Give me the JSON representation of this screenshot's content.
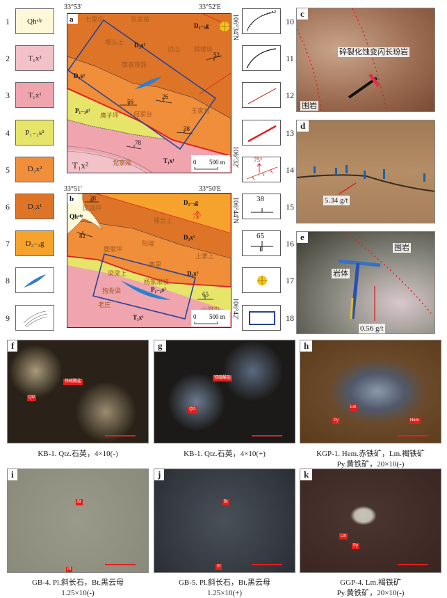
{
  "legend_left": [
    {
      "num": "1",
      "label": "Qhᵃˡᵖ",
      "color": "#fcf8d8"
    },
    {
      "num": "2",
      "label": "T₁x²",
      "color": "#f2c2c8"
    },
    {
      "num": "3",
      "label": "T₁x¹",
      "color": "#f0a4ae"
    },
    {
      "num": "4",
      "label": "P₁₋₂s²",
      "color": "#e6e56a"
    },
    {
      "num": "5",
      "label": "D₃x²",
      "color": "#f08e3a"
    },
    {
      "num": "6",
      "label": "D₃x¹",
      "color": "#dd7428"
    },
    {
      "num": "7",
      "label": "D₂₋₃g",
      "color": "#f5a32c"
    },
    {
      "num": "8",
      "icon": "ore-body-lens-icon",
      "color": "#2f7fd0"
    },
    {
      "num": "9",
      "icon": "road-icon"
    }
  ],
  "legend_right": [
    {
      "num": "10",
      "icon": "unconformity-boundary-icon"
    },
    {
      "num": "11",
      "icon": "stratigraphic-boundary-icon"
    },
    {
      "num": "12",
      "icon": "fault-icon"
    },
    {
      "num": "13",
      "icon": "major-fault-icon"
    },
    {
      "num": "14",
      "icon": "thrust-fault-icon",
      "text": "75°"
    },
    {
      "num": "15",
      "icon": "strike-dip-icon",
      "text": "38"
    },
    {
      "num": "16",
      "icon": "overturned-bedding-icon",
      "text": "65"
    },
    {
      "num": "17",
      "icon": "gold-deposit-icon",
      "color": "#f2c618"
    },
    {
      "num": "18",
      "icon": "study-area-rectangle-icon",
      "color": "#28449a"
    }
  ],
  "map_a": {
    "tag": "a",
    "coord_tl": "33°53'",
    "coord_tr": "33°52'E",
    "coord_right_top": "106°34'N",
    "coord_right_bottom": "106°32'",
    "scale_0": "0",
    "scale_label": "500 m",
    "labels": [
      "七里庄",
      "张家窑",
      "D₂₋₃g",
      "堰头上",
      "D₃x¹",
      "边山",
      "牌楼垭",
      "52",
      "康家垭豁",
      "D₃x²",
      "56",
      "26",
      "P₁₋₂s²",
      "鹰子坪",
      "何家台",
      "王家台",
      "38",
      "78",
      "T₁x¹",
      "T₁x²",
      "党家梁"
    ]
  },
  "map_b": {
    "tag": "b",
    "coord_tl": "33°51'",
    "coord_tr": "33°50'E",
    "coord_right_top": "106°44'N",
    "coord_right_bottom": "106°42'",
    "scale_0": "0",
    "scale_label": "500 m",
    "labels": [
      "28",
      "庞锅坪",
      "Qhᵃˡᵖ",
      "82",
      "D₂₋₃g",
      "播台上",
      "75°",
      "D₃x¹",
      "阳坡",
      "鹿家坪",
      "上寨上",
      "寨里",
      "D₃x²",
      "梁梁上",
      "杨家阳坡",
      "P₁₋₂s²",
      "狗骨梁",
      "65",
      "老庄",
      "小河沟",
      "T₁x¹"
    ]
  },
  "photos": {
    "c": {
      "tag": "c",
      "label1": "碎裂化蚀变闪长玢岩",
      "label2": "围岩"
    },
    "d": {
      "tag": "d",
      "grade": "5.34 g/t"
    },
    "e": {
      "tag": "e",
      "label1": "围岩",
      "label2": "岩体",
      "grade": "0.56 g/t"
    }
  },
  "micro": [
    {
      "tag": "f",
      "labels": [
        "铁碳酸盐",
        "Qtz"
      ],
      "caption": "KB-1. Qtz.石英，4×10(-)"
    },
    {
      "tag": "g",
      "labels": [
        "铁碳酸盐",
        "Qtz"
      ],
      "caption": "KB-1. Qtz.石英，4×10(+)"
    },
    {
      "tag": "h",
      "labels": [
        "Lm",
        "Py",
        "Hem"
      ],
      "caption": "KGP-1. Hem.赤铁矿，Lm.褐铁矿",
      "caption2": "Py.黄铁矿，20×10(-)"
    },
    {
      "tag": "i",
      "labels": [
        "Bt",
        "Pl"
      ],
      "caption": "GB-4. Pl.斜长石，Bt.黑云母",
      "caption2": "1.25×10(-)"
    },
    {
      "tag": "j",
      "labels": [
        "Bt",
        "Pl"
      ],
      "caption": "GB-5. Pl.斜长石，Bt.黑云母",
      "caption2": "1.25×10(+)"
    },
    {
      "tag": "k",
      "labels": [
        "Lm",
        "Py"
      ],
      "caption": "GGP-4. Lm.褐铁矿",
      "caption2": "Py.黄铁矿，20×10(-)"
    }
  ]
}
